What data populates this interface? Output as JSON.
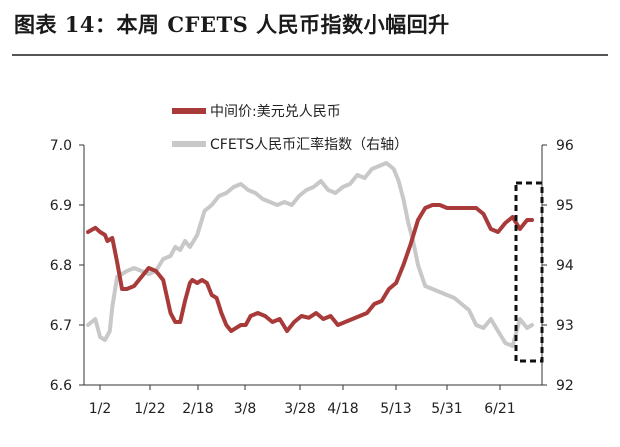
{
  "title": "图表 14：本周 CFETS 人民币指数小幅回升",
  "chart_data": {
    "type": "line",
    "xlabel": "",
    "ylabel": "",
    "x_ticks": [
      "1/2",
      "1/22",
      "2/18",
      "3/8",
      "3/28",
      "4/18",
      "5/13",
      "5/31",
      "6/21"
    ],
    "y_left": {
      "ylim": [
        6.6,
        7.0
      ],
      "ticks": [
        "6.6",
        "6.7",
        "6.8",
        "6.9",
        "7.0"
      ]
    },
    "y_right": {
      "ylim": [
        92,
        96
      ],
      "ticks": [
        "92",
        "93",
        "94",
        "95",
        "96"
      ]
    },
    "legend_placement": "top-center",
    "grid": false,
    "highlight_box": "last week of series (dashed rectangle)",
    "series": [
      {
        "name": "中间价:美元兑人民币",
        "axis": "left",
        "color": "#a93a3a",
        "x": [
          0,
          3,
          5,
          7,
          8,
          10,
          12,
          14,
          16,
          19,
          22,
          25,
          28,
          31,
          34,
          36,
          38,
          40,
          42,
          43,
          45,
          47,
          49,
          51,
          53,
          55,
          57,
          59,
          61,
          63,
          65,
          67,
          70,
          73,
          76,
          79,
          82,
          85,
          88,
          91,
          94,
          97,
          100,
          103,
          106,
          109,
          112,
          115,
          118,
          121,
          124,
          127,
          130,
          133,
          136,
          139,
          142,
          145,
          148,
          151,
          154,
          157,
          160,
          163,
          166,
          169,
          172,
          175,
          178,
          181,
          183
        ],
        "values": [
          6.855,
          6.862,
          6.855,
          6.85,
          6.84,
          6.845,
          6.805,
          6.76,
          6.76,
          6.765,
          6.78,
          6.795,
          6.79,
          6.775,
          6.72,
          6.705,
          6.705,
          6.74,
          6.77,
          6.775,
          6.77,
          6.775,
          6.77,
          6.75,
          6.745,
          6.72,
          6.7,
          6.69,
          6.695,
          6.7,
          6.7,
          6.715,
          6.72,
          6.715,
          6.705,
          6.71,
          6.69,
          6.705,
          6.715,
          6.712,
          6.72,
          6.71,
          6.715,
          6.7,
          6.705,
          6.71,
          6.715,
          6.72,
          6.735,
          6.74,
          6.76,
          6.77,
          6.8,
          6.835,
          6.875,
          6.895,
          6.9,
          6.9,
          6.895,
          6.895,
          6.895,
          6.895,
          6.895,
          6.885,
          6.86,
          6.855,
          6.87,
          6.88,
          6.86,
          6.875,
          6.875
        ]
      },
      {
        "name": "CFETS人民币汇率指数（右轴）",
        "axis": "right",
        "color": "#c8c8c8",
        "x": [
          0,
          3,
          5,
          7,
          9,
          10,
          12,
          14,
          16,
          19,
          22,
          25,
          28,
          31,
          34,
          36,
          38,
          40,
          42,
          45,
          48,
          51,
          54,
          57,
          60,
          63,
          66,
          69,
          72,
          75,
          78,
          81,
          84,
          87,
          90,
          93,
          96,
          99,
          102,
          105,
          108,
          111,
          114,
          117,
          120,
          123,
          126,
          128,
          130,
          132,
          134,
          136,
          139,
          142,
          145,
          148,
          151,
          154,
          157,
          160,
          163,
          166,
          169,
          172,
          175,
          178,
          181,
          183
        ],
        "values": [
          93.0,
          93.1,
          92.8,
          92.75,
          92.9,
          93.3,
          93.8,
          93.85,
          93.9,
          93.95,
          93.9,
          93.85,
          93.9,
          94.1,
          94.15,
          94.3,
          94.25,
          94.4,
          94.3,
          94.5,
          94.9,
          95.0,
          95.15,
          95.2,
          95.3,
          95.35,
          95.25,
          95.2,
          95.1,
          95.05,
          95.0,
          95.05,
          95.0,
          95.15,
          95.25,
          95.3,
          95.4,
          95.25,
          95.2,
          95.3,
          95.35,
          95.5,
          95.45,
          95.6,
          95.65,
          95.7,
          95.6,
          95.4,
          95.1,
          94.7,
          94.4,
          94.0,
          93.65,
          93.6,
          93.55,
          93.5,
          93.45,
          93.35,
          93.25,
          93.0,
          92.95,
          93.1,
          92.9,
          92.7,
          92.65,
          93.1,
          92.95,
          93.0
        ]
      }
    ]
  }
}
